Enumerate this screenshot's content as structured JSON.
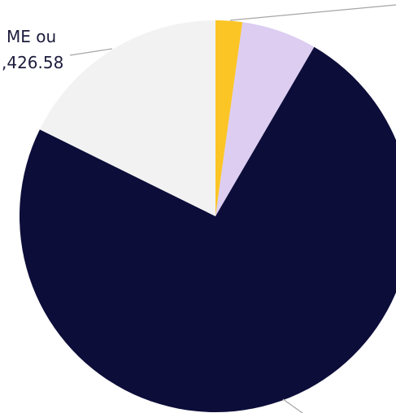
{
  "chart_data": {
    "type": "pie",
    "categories": [
      null,
      null,
      null,
      null
    ],
    "values": [
      2.2,
      6.2,
      73.9,
      17.7
    ],
    "colors": [
      "#fbc526",
      "#dccdf1",
      "#0d0d3a",
      "#f2f2f2"
    ],
    "annotations": [
      "ME ou",
      ",426.58"
    ]
  }
}
